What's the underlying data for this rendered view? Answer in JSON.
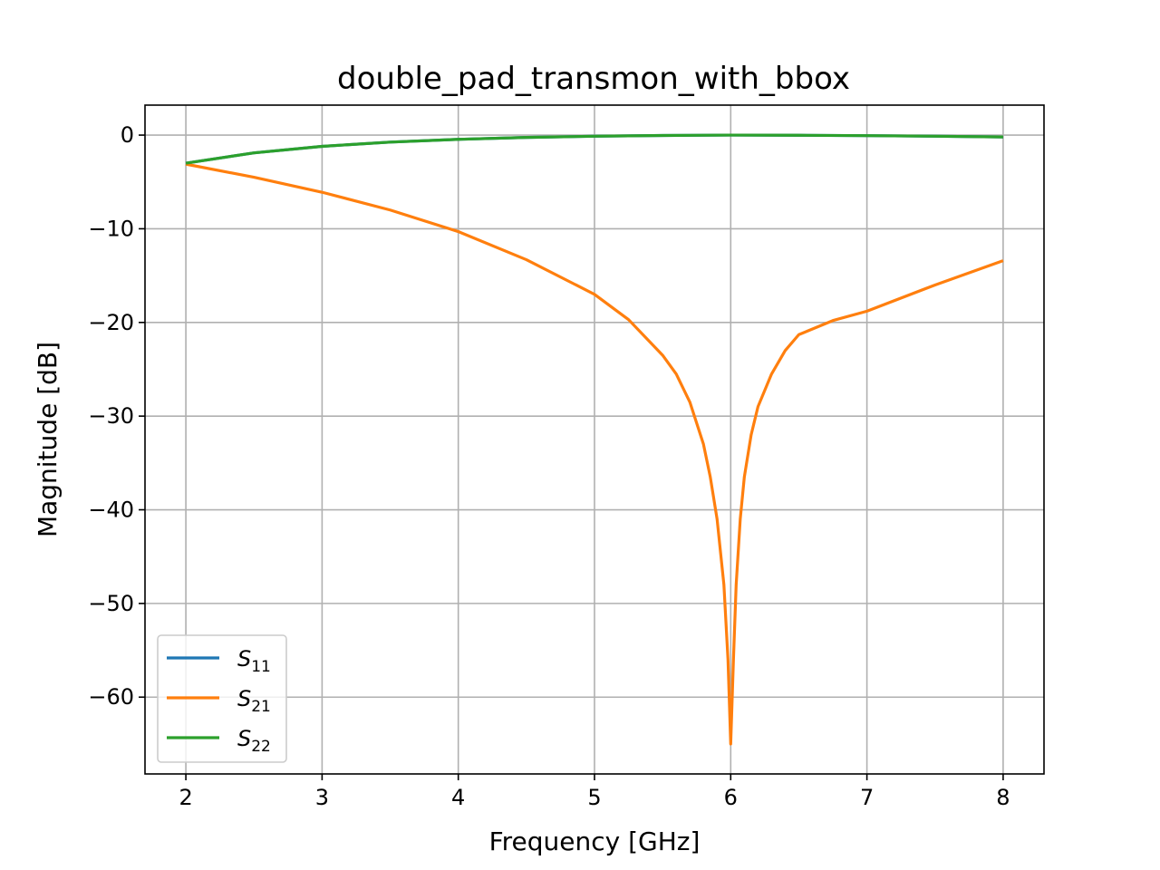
{
  "chart_data": {
    "type": "line",
    "title": "double_pad_transmon_with_bbox",
    "xlabel": "Frequency [GHz]",
    "ylabel": "Magnitude [dB]",
    "xlim": [
      1.7,
      8.3
    ],
    "ylim": [
      -68.2,
      3.2
    ],
    "xticks": [
      2,
      3,
      4,
      5,
      6,
      7,
      8
    ],
    "xtick_labels": [
      "2",
      "3",
      "4",
      "5",
      "6",
      "7",
      "8"
    ],
    "yticks": [
      0,
      -10,
      -20,
      -30,
      -40,
      -50,
      -60
    ],
    "ytick_labels": [
      "0",
      "−10",
      "−20",
      "−30",
      "−40",
      "−50",
      "−60"
    ],
    "grid": true,
    "legend_position": "lower-left",
    "series": [
      {
        "name": "S",
        "subscript": "11",
        "color": "#1f77b4",
        "x": [
          2.0,
          2.5,
          3.0,
          3.5,
          4.0,
          4.5,
          5.0,
          5.5,
          6.0,
          6.5,
          7.0,
          7.5,
          8.0
        ],
        "y": [
          -3.0,
          -1.9,
          -1.2,
          -0.75,
          -0.45,
          -0.25,
          -0.12,
          -0.04,
          0.0,
          -0.02,
          -0.06,
          -0.12,
          -0.2
        ]
      },
      {
        "name": "S",
        "subscript": "21",
        "color": "#ff7f0e",
        "x": [
          2.0,
          2.5,
          3.0,
          3.5,
          4.0,
          4.5,
          5.0,
          5.25,
          5.5,
          5.6,
          5.7,
          5.8,
          5.85,
          5.9,
          5.95,
          5.98,
          6.0,
          6.02,
          6.04,
          6.07,
          6.1,
          6.15,
          6.2,
          6.3,
          6.4,
          6.5,
          6.75,
          7.0,
          7.5,
          8.0
        ],
        "y": [
          -3.1,
          -4.5,
          -6.1,
          -8.0,
          -10.3,
          -13.3,
          -17.0,
          -19.7,
          -23.5,
          -25.5,
          -28.5,
          -33.0,
          -36.5,
          -41.0,
          -48.0,
          -56.0,
          -65.0,
          -56.0,
          -48.0,
          -41.0,
          -36.5,
          -32.0,
          -29.0,
          -25.5,
          -23.0,
          -21.3,
          -19.8,
          -18.8,
          -16.0,
          -13.4
        ]
      },
      {
        "name": "S",
        "subscript": "22",
        "color": "#2ca02c",
        "x": [
          2.0,
          2.5,
          3.0,
          3.5,
          4.0,
          4.5,
          5.0,
          5.5,
          6.0,
          6.5,
          7.0,
          7.5,
          8.0
        ],
        "y": [
          -3.0,
          -1.9,
          -1.2,
          -0.75,
          -0.45,
          -0.25,
          -0.12,
          -0.04,
          0.0,
          -0.02,
          -0.06,
          -0.12,
          -0.2
        ]
      }
    ]
  }
}
